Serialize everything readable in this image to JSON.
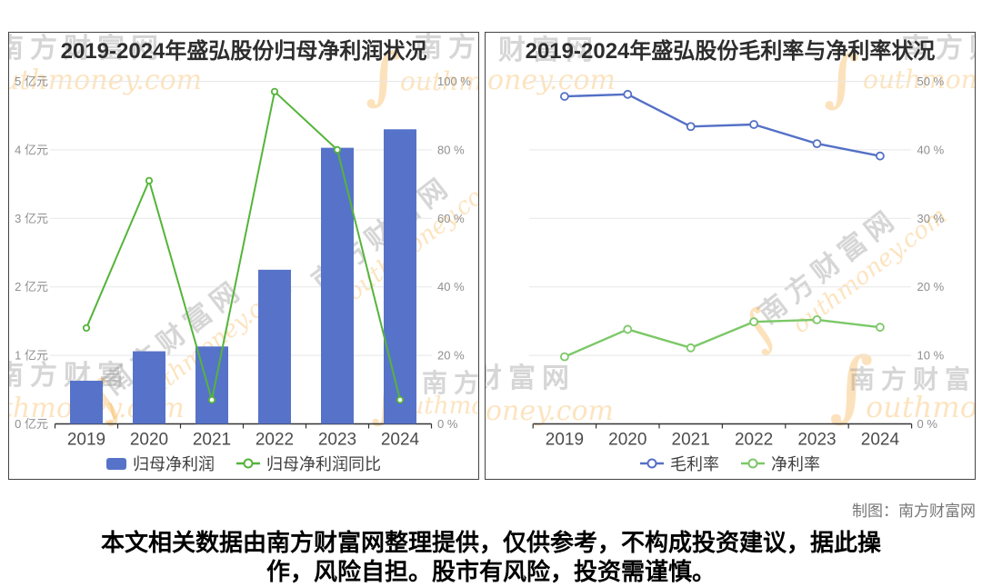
{
  "page": {
    "credit": "制图：南方财富网",
    "disclaimer_line1": "本文相关数据由南方财富网整理提供，仅供参考，不构成投资建议，据此操",
    "disclaimer_line2": "作，风险自担。股市有风险，投资需谨慎。"
  },
  "colors": {
    "bar_blue": "#5673c9",
    "yoy_green": "#55b43a",
    "gross_margin_blue": "#5470c6",
    "net_margin_green": "#7cc868",
    "grid": "#e7e7e7",
    "axis": "#333333",
    "watermark_orange": "#f6a731",
    "watermark_gray": "#8a8a8a"
  },
  "watermark": {
    "cjk_full": "南方财富网",
    "cjk_partial": "财富网",
    "latin_full": "Southmoney.com",
    "latin_outhmoney": "outhmoney.com",
    "latin_uthmoney": "uthmoney.com",
    "latin_thmoney": "thmoney.com",
    "latin_oney": "oney.com",
    "latin_outhmone": "outhmone",
    "swoosh": "∫"
  },
  "chart_data": [
    {
      "type": "bar",
      "title": "2019-2024年盛弘股份归母净利润状况",
      "categories": [
        "2019",
        "2020",
        "2021",
        "2022",
        "2023",
        "2024"
      ],
      "series": [
        {
          "id": "net_profit",
          "name": "归母净利润",
          "type": "bar",
          "axis": "left",
          "unit": "亿元",
          "marker": "rect",
          "color": "#5673c9",
          "values": [
            0.63,
            1.06,
            1.13,
            2.25,
            4.03,
            4.3
          ]
        },
        {
          "id": "yoy",
          "name": "归母净利润同比",
          "type": "line",
          "axis": "right",
          "unit": "%",
          "marker": "line-circle",
          "color": "#55b43a",
          "values": [
            28,
            71,
            7,
            97,
            80,
            7
          ]
        }
      ],
      "left_axis": {
        "min": 0,
        "max": 5,
        "ticks": [
          "5 亿元",
          "4 亿元",
          "3 亿元",
          "2 亿元",
          "1 亿元",
          "0 亿元"
        ]
      },
      "right_axis": {
        "min": 0,
        "max": 100,
        "ticks": [
          "100 %",
          "80 %",
          "60 %",
          "40 %",
          "20 %",
          "0 %"
        ]
      },
      "legend": [
        "归母净利润",
        "归母净利润同比"
      ],
      "grid": true,
      "legend_position": "bottom"
    },
    {
      "type": "line",
      "title": "2019-2024年盛弘股份毛利率与净利率状况",
      "categories": [
        "2019",
        "2020",
        "2021",
        "2022",
        "2023",
        "2024"
      ],
      "series": [
        {
          "id": "gross_margin",
          "name": "毛利率",
          "type": "line",
          "axis": "right",
          "unit": "%",
          "marker": "line-circle",
          "color": "#5470c6",
          "values": [
            47.8,
            48.1,
            43.4,
            43.7,
            40.9,
            39.1
          ]
        },
        {
          "id": "net_margin",
          "name": "净利率",
          "type": "line",
          "axis": "right",
          "unit": "%",
          "marker": "line-circle",
          "color": "#7cc868",
          "values": [
            9.8,
            13.8,
            11.1,
            14.9,
            15.2,
            14.1
          ]
        }
      ],
      "right_axis": {
        "min": 0,
        "max": 50,
        "ticks": [
          "50 %",
          "40 %",
          "30 %",
          "20 %",
          "10 %",
          "0 %"
        ]
      },
      "legend": [
        "毛利率",
        "净利率"
      ],
      "grid": true,
      "legend_position": "bottom"
    }
  ]
}
